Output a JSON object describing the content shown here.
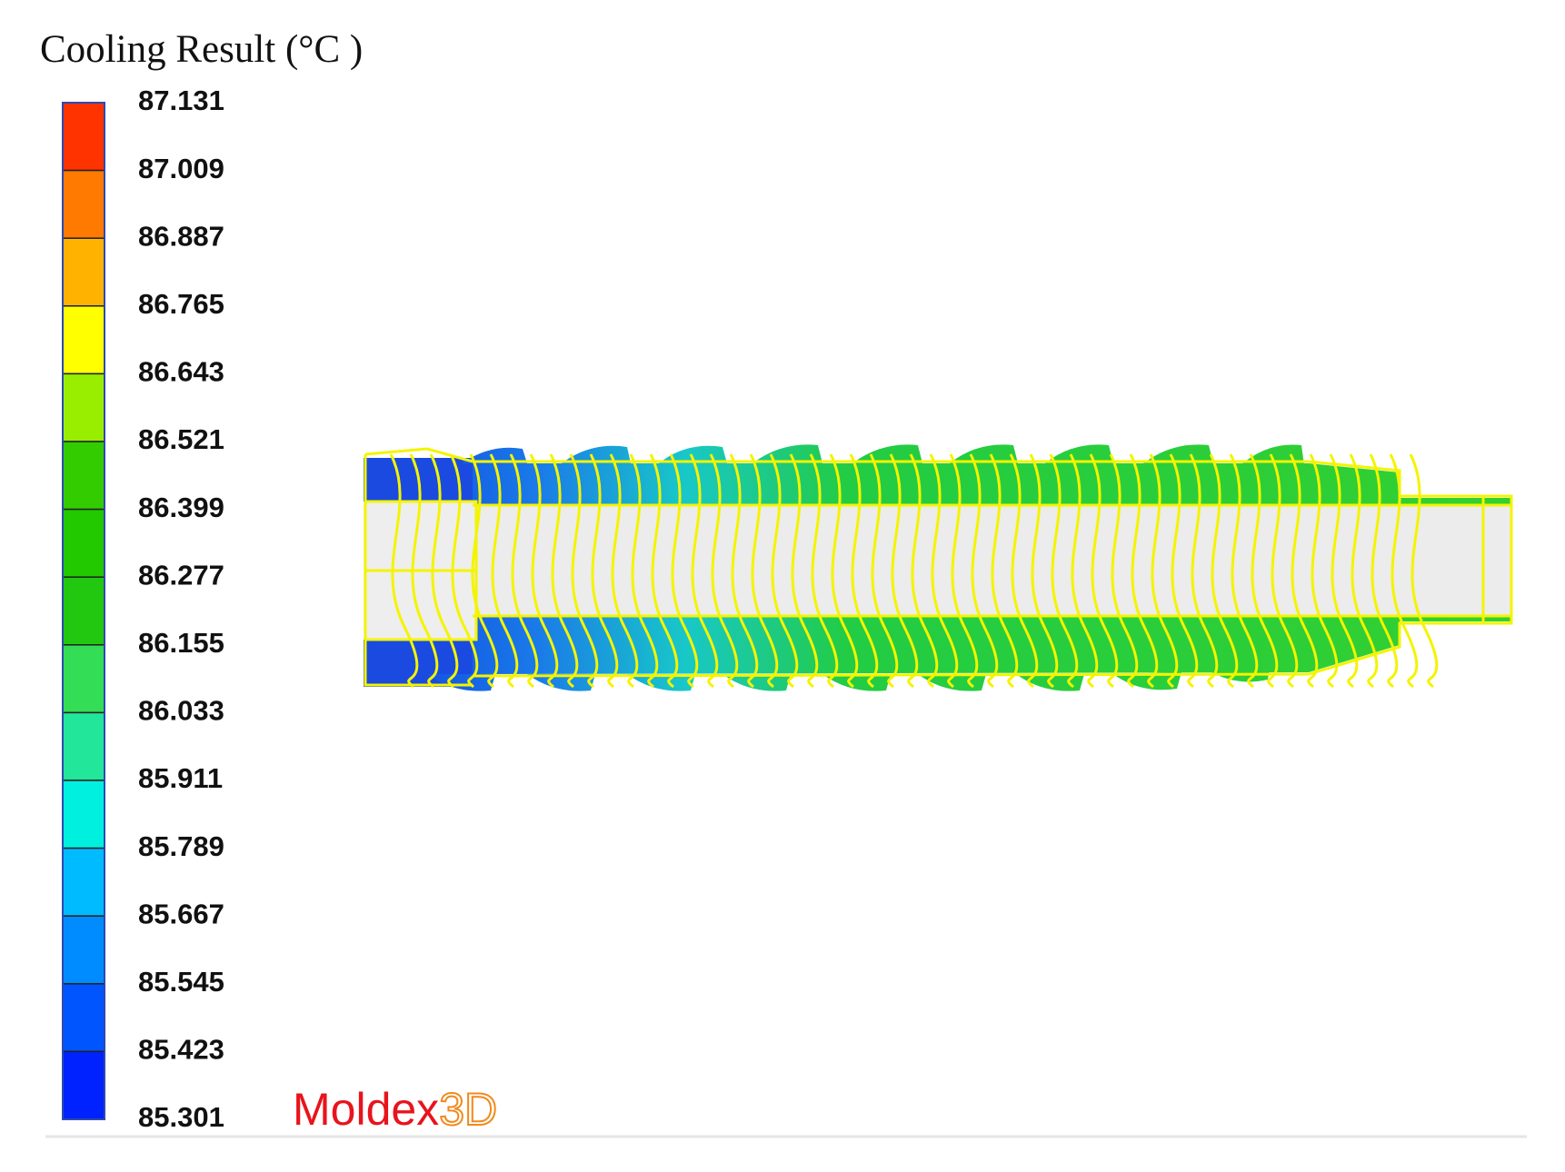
{
  "title": "Cooling Result (°C )",
  "legend": {
    "labels": [
      "87.131",
      "87.009",
      "86.887",
      "86.765",
      "86.643",
      "86.521",
      "86.399",
      "86.277",
      "86.155",
      "86.033",
      "85.911",
      "85.789",
      "85.667",
      "85.545",
      "85.423",
      "85.301"
    ]
  },
  "brand": {
    "name": "Moldex",
    "suffix": "3D"
  }
}
